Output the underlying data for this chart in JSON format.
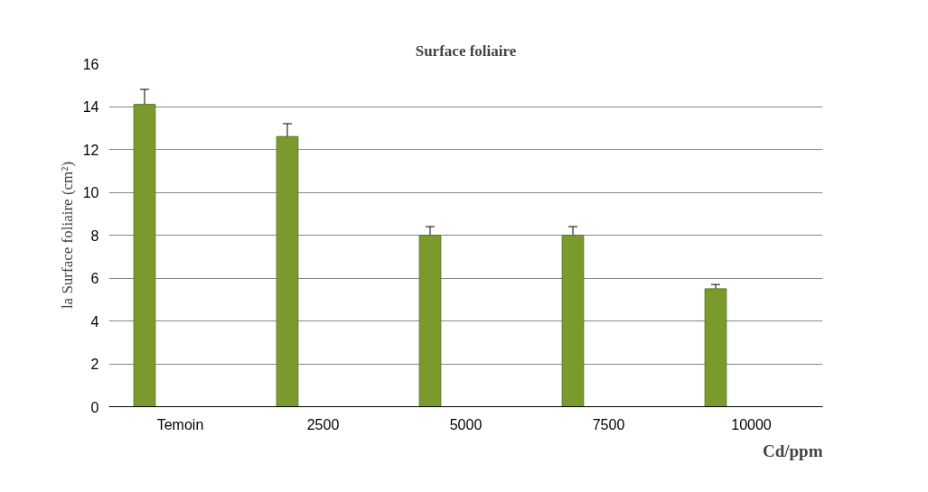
{
  "chart_data": {
    "type": "bar",
    "title": "Surface foliaire",
    "xlabel": "Cd/ppm",
    "ylabel": "la Surface foliaire (cm²)",
    "categories": [
      "Temoin",
      "2500",
      "5000",
      "7500",
      "10000"
    ],
    "values": [
      14.1,
      12.6,
      8.0,
      8.0,
      5.5
    ],
    "errors": [
      0.7,
      0.6,
      0.4,
      0.4,
      0.2
    ],
    "color": "#7a9a2e",
    "ylim": [
      0,
      16
    ],
    "yticks": [
      0,
      2,
      4,
      6,
      8,
      10,
      12,
      14,
      16
    ],
    "grid": "y"
  }
}
